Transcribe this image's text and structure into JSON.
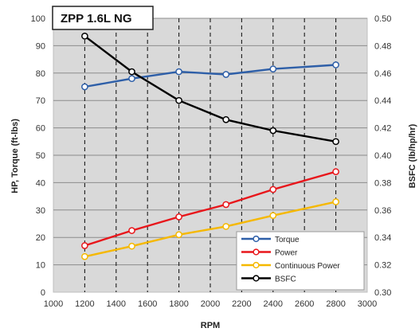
{
  "chart_data": {
    "type": "line",
    "title": "ZPP 1.6L NG",
    "xlabel": "RPM",
    "ylabel": "HP, Torque (ft-lbs)",
    "y2label": "BSFC (lb/hp/hr)",
    "xlim": [
      1000,
      3000
    ],
    "ylim": [
      0,
      100
    ],
    "y2lim": [
      0.3,
      0.5
    ],
    "x_ticks": [
      "1000",
      "1200",
      "1400",
      "1600",
      "1800",
      "2000",
      "2200",
      "2400",
      "2600",
      "2800",
      "3000"
    ],
    "y_ticks": [
      "0",
      "10",
      "20",
      "30",
      "40",
      "50",
      "60",
      "70",
      "80",
      "90",
      "100"
    ],
    "y2_ticks": [
      "0.30",
      "0.32",
      "0.34",
      "0.36",
      "0.38",
      "0.40",
      "0.42",
      "0.44",
      "0.46",
      "0.48",
      "0.50"
    ],
    "grid": true,
    "legend_position": "bottom-right",
    "series": [
      {
        "name": "Torque",
        "axis": "left",
        "color": "#2e5fa8",
        "x": [
          1200,
          1500,
          1800,
          2100,
          2400,
          2800
        ],
        "values": [
          75,
          78,
          80.5,
          79.5,
          81.5,
          83
        ]
      },
      {
        "name": "Power",
        "axis": "left",
        "color": "#e8161b",
        "x": [
          1200,
          1500,
          1800,
          2100,
          2400,
          2800
        ],
        "values": [
          17,
          22.5,
          27.5,
          32,
          37.5,
          44
        ]
      },
      {
        "name": "Continuous Power",
        "axis": "left",
        "color": "#f5b800",
        "x": [
          1200,
          1500,
          1800,
          2100,
          2400,
          2800
        ],
        "values": [
          13,
          16.8,
          21,
          24,
          28,
          33
        ]
      },
      {
        "name": "BSFC",
        "axis": "right",
        "color": "#000000",
        "x": [
          1200,
          1500,
          1800,
          2100,
          2400,
          2800
        ],
        "values": [
          0.487,
          0.461,
          0.44,
          0.426,
          0.418,
          0.41
        ]
      }
    ]
  }
}
